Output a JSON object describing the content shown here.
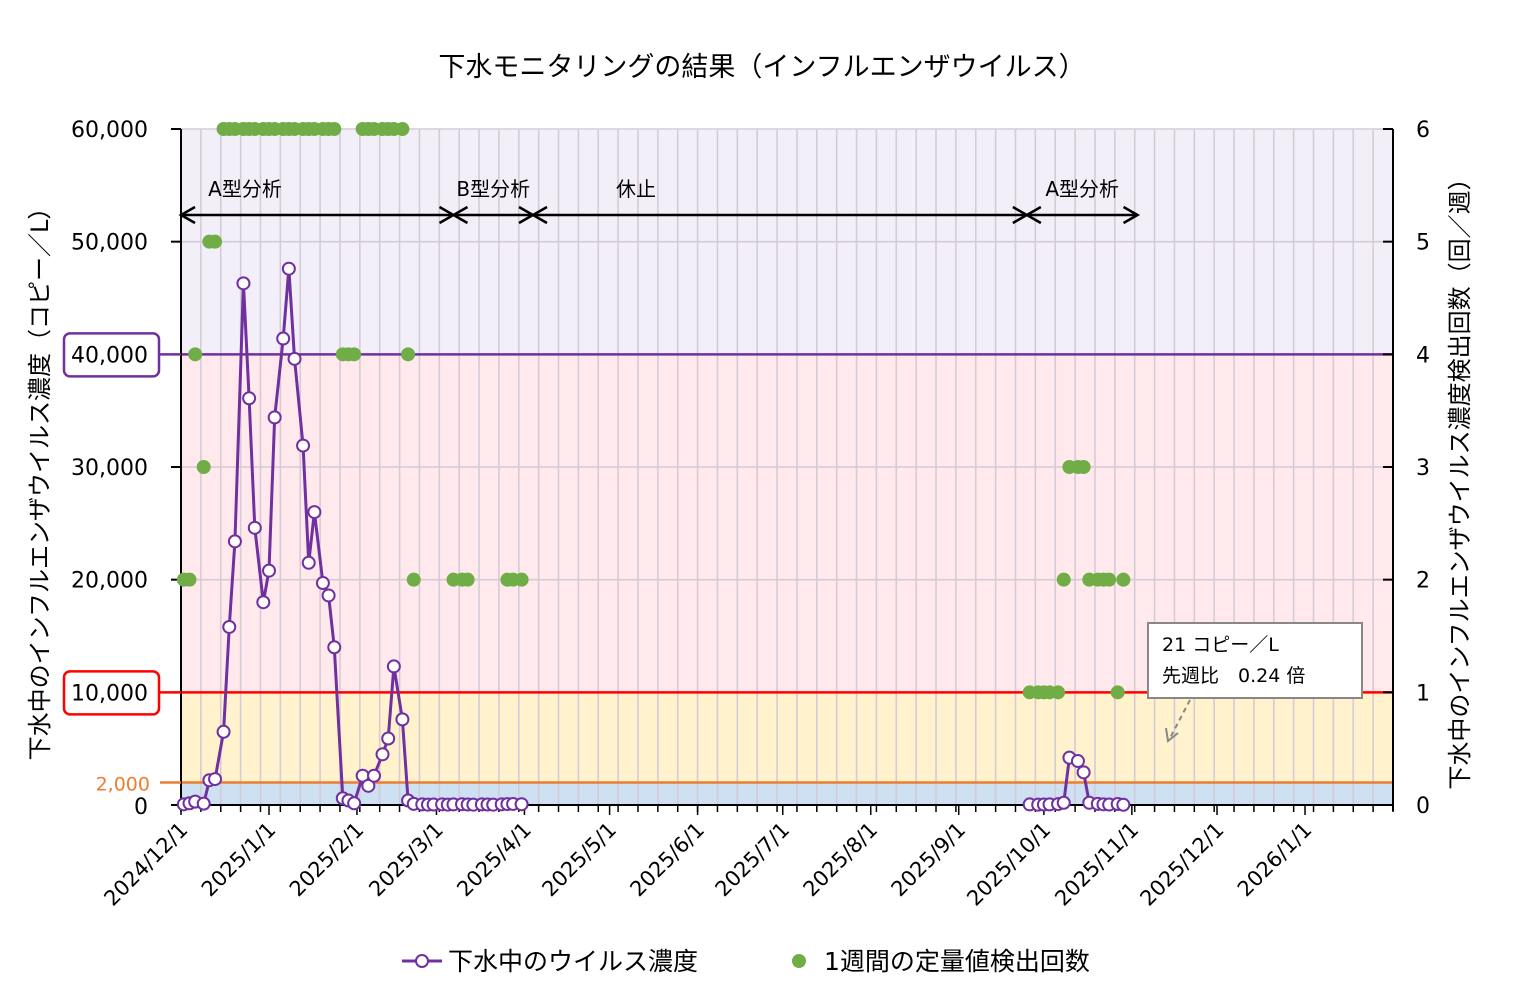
{
  "chart_data": {
    "type": "line",
    "title": "下水モニタリングの結果（インフルエンザウイルス）",
    "ylabel_left": "下水中のインフルエンザウイルス濃度（コピー／L）",
    "ylabel_right": "下水中のインフルエンザウイルス濃度検出回数（回／週）",
    "xlim": [
      "2024-12-01",
      "2026-02-01"
    ],
    "ylim_left": [
      0,
      60000
    ],
    "ylim_right": [
      0,
      6
    ],
    "grid": "on",
    "legend_placement": "bottom",
    "x_tick_labels": [
      {
        "date": "2024-12-01",
        "label": "2024/12/1"
      },
      {
        "date": "2025-01-01",
        "label": "2025/1/1"
      },
      {
        "date": "2025-02-01",
        "label": "2025/2/1"
      },
      {
        "date": "2025-03-01",
        "label": "2025/3/1"
      },
      {
        "date": "2025-04-01",
        "label": "2025/4/1"
      },
      {
        "date": "2025-05-01",
        "label": "2025/5/1"
      },
      {
        "date": "2025-06-01",
        "label": "2025/6/1"
      },
      {
        "date": "2025-07-01",
        "label": "2025/7/1"
      },
      {
        "date": "2025-08-01",
        "label": "2025/8/1"
      },
      {
        "date": "2025-09-01",
        "label": "2025/9/1"
      },
      {
        "date": "2025-10-01",
        "label": "2025/10/1"
      },
      {
        "date": "2025-11-01",
        "label": "2025/11/1"
      },
      {
        "date": "2025-12-01",
        "label": "2025/12/1"
      },
      {
        "date": "2026-01-01",
        "label": "2026/1/1"
      }
    ],
    "y_tick_labels_left": [
      {
        "value": 0,
        "label": "0",
        "style": "plain"
      },
      {
        "value": 2000,
        "label": "2,000",
        "style": "orange"
      },
      {
        "value": 10000,
        "label": "10,000",
        "style": "boxed-red"
      },
      {
        "value": 20000,
        "label": "20,000",
        "style": "plain"
      },
      {
        "value": 30000,
        "label": "30,000",
        "style": "plain"
      },
      {
        "value": 40000,
        "label": "40,000",
        "style": "boxed-purple"
      },
      {
        "value": 50000,
        "label": "50,000",
        "style": "plain"
      },
      {
        "value": 60000,
        "label": "60,000",
        "style": "plain"
      }
    ],
    "y_tick_labels_right": [
      {
        "value": 0,
        "label": "0"
      },
      {
        "value": 1,
        "label": "1"
      },
      {
        "value": 2,
        "label": "2"
      },
      {
        "value": 3,
        "label": "3"
      },
      {
        "value": 4,
        "label": "4"
      },
      {
        "value": 5,
        "label": "5"
      },
      {
        "value": 6,
        "label": "6"
      }
    ],
    "bands": [
      {
        "from": 0,
        "to": 2000,
        "color": "#cde1f2"
      },
      {
        "from": 2000,
        "to": 10000,
        "color": "#fff2cc"
      },
      {
        "from": 10000,
        "to": 40000,
        "color": "#ffe9ec"
      },
      {
        "from": 40000,
        "to": 60000,
        "color": "#f3eff9"
      }
    ],
    "thresholds": [
      {
        "value": 2000,
        "color": "#ed7d31"
      },
      {
        "value": 10000,
        "color": "#ff0000"
      },
      {
        "value": 40000,
        "color": "#7030a0"
      }
    ],
    "periods": [
      {
        "label": "A型分析",
        "start": "2024-12-01",
        "end": "2025-03-07"
      },
      {
        "label": "B型分析",
        "start": "2025-03-07",
        "end": "2025-04-04"
      },
      {
        "label": "休止",
        "start": "2025-04-04",
        "end": "2025-09-25"
      },
      {
        "label": "A型分析",
        "start": "2025-09-25",
        "end": "2025-11-03"
      }
    ],
    "callout": {
      "lines": [
        "21 コピー／L",
        "先週比　0.24 倍"
      ],
      "target_date": "2025-10-29"
    },
    "series": [
      {
        "name": "下水中のウイルス濃度",
        "axis": "left",
        "color": "#7030a0",
        "marker": "open-circle",
        "points": [
          [
            "2024-12-02",
            60
          ],
          [
            "2024-12-04",
            150
          ],
          [
            "2024-12-06",
            300
          ],
          [
            "2024-12-09",
            120
          ],
          [
            "2024-12-11",
            2200
          ],
          [
            "2024-12-13",
            2300
          ],
          [
            "2024-12-16",
            6500
          ],
          [
            "2024-12-18",
            15800
          ],
          [
            "2024-12-20",
            23400
          ],
          [
            "2024-12-23",
            46300
          ],
          [
            "2024-12-25",
            36100
          ],
          [
            "2024-12-27",
            24600
          ],
          [
            "2024-12-30",
            18000
          ],
          [
            "2025-01-01",
            20800
          ],
          [
            "2025-01-03",
            34400
          ],
          [
            "2025-01-06",
            41400
          ],
          [
            "2025-01-08",
            47600
          ],
          [
            "2025-01-10",
            39600
          ],
          [
            "2025-01-13",
            31900
          ],
          [
            "2025-01-15",
            21500
          ],
          [
            "2025-01-17",
            26000
          ],
          [
            "2025-01-20",
            19700
          ],
          [
            "2025-01-22",
            18600
          ],
          [
            "2025-01-24",
            14000
          ],
          [
            "2025-01-27",
            600
          ],
          [
            "2025-01-29",
            400
          ],
          [
            "2025-01-31",
            150
          ],
          [
            "2025-02-03",
            2600
          ],
          [
            "2025-02-05",
            1700
          ],
          [
            "2025-02-07",
            2600
          ],
          [
            "2025-02-10",
            4500
          ],
          [
            "2025-02-12",
            5900
          ],
          [
            "2025-02-14",
            12300
          ],
          [
            "2025-02-17",
            7600
          ],
          [
            "2025-02-19",
            400
          ],
          [
            "2025-02-21",
            100
          ],
          [
            "2025-02-24",
            50
          ],
          [
            "2025-02-26",
            30
          ],
          [
            "2025-02-28",
            40
          ],
          [
            "2025-03-03",
            60
          ],
          [
            "2025-03-05",
            30
          ],
          [
            "2025-03-07",
            50
          ],
          [
            "2025-03-10",
            70
          ],
          [
            "2025-03-12",
            40
          ],
          [
            "2025-03-14",
            30
          ],
          [
            "2025-03-17",
            50
          ],
          [
            "2025-03-19",
            40
          ],
          [
            "2025-03-21",
            30
          ],
          [
            "2025-03-24",
            60
          ],
          [
            "2025-03-26",
            80
          ],
          [
            "2025-03-28",
            90
          ],
          [
            "2025-03-31",
            70
          ],
          null,
          [
            "2025-09-26",
            50
          ],
          [
            "2025-09-29",
            30
          ],
          [
            "2025-10-01",
            40
          ],
          [
            "2025-10-03",
            50
          ],
          [
            "2025-10-06",
            80
          ],
          [
            "2025-10-08",
            200
          ],
          [
            "2025-10-10",
            4200
          ],
          [
            "2025-10-13",
            3900
          ],
          [
            "2025-10-15",
            2900
          ],
          [
            "2025-10-17",
            200
          ],
          [
            "2025-10-20",
            100
          ],
          [
            "2025-10-22",
            60
          ],
          [
            "2025-10-24",
            40
          ],
          [
            "2025-10-27",
            87
          ],
          [
            "2025-10-29",
            21
          ]
        ]
      },
      {
        "name": "1週間の定量値検出回数",
        "axis": "right",
        "color": "#70ad47",
        "marker": "filled-circle",
        "points": [
          [
            "2024-12-02",
            2
          ],
          [
            "2024-12-04",
            2
          ],
          [
            "2024-12-06",
            4
          ],
          [
            "2024-12-09",
            3
          ],
          [
            "2024-12-11",
            5
          ],
          [
            "2024-12-13",
            5
          ],
          [
            "2024-12-16",
            6
          ],
          [
            "2024-12-18",
            6
          ],
          [
            "2024-12-20",
            6
          ],
          [
            "2024-12-23",
            6
          ],
          [
            "2024-12-25",
            6
          ],
          [
            "2024-12-27",
            6
          ],
          [
            "2024-12-30",
            6
          ],
          [
            "2025-01-01",
            6
          ],
          [
            "2025-01-03",
            6
          ],
          [
            "2025-01-06",
            6
          ],
          [
            "2025-01-08",
            6
          ],
          [
            "2025-01-10",
            6
          ],
          [
            "2025-01-13",
            6
          ],
          [
            "2025-01-15",
            6
          ],
          [
            "2025-01-17",
            6
          ],
          [
            "2025-01-20",
            6
          ],
          [
            "2025-01-22",
            6
          ],
          [
            "2025-01-24",
            6
          ],
          [
            "2025-01-27",
            4
          ],
          [
            "2025-01-29",
            4
          ],
          [
            "2025-01-31",
            4
          ],
          [
            "2025-02-03",
            6
          ],
          [
            "2025-02-05",
            6
          ],
          [
            "2025-02-07",
            6
          ],
          [
            "2025-02-10",
            6
          ],
          [
            "2025-02-12",
            6
          ],
          [
            "2025-02-14",
            6
          ],
          [
            "2025-02-17",
            6
          ],
          [
            "2025-02-19",
            4
          ],
          [
            "2025-02-21",
            2
          ],
          [
            "2025-03-07",
            2
          ],
          [
            "2025-03-10",
            2
          ],
          [
            "2025-03-12",
            2
          ],
          [
            "2025-03-26",
            2
          ],
          [
            "2025-03-28",
            2
          ],
          [
            "2025-03-31",
            2
          ],
          [
            "2025-09-26",
            1
          ],
          [
            "2025-09-29",
            1
          ],
          [
            "2025-10-01",
            1
          ],
          [
            "2025-10-03",
            1
          ],
          [
            "2025-10-06",
            1
          ],
          [
            "2025-10-08",
            2
          ],
          [
            "2025-10-10",
            3
          ],
          [
            "2025-10-13",
            3
          ],
          [
            "2025-10-15",
            3
          ],
          [
            "2025-10-17",
            2
          ],
          [
            "2025-10-20",
            2
          ],
          [
            "2025-10-22",
            2
          ],
          [
            "2025-10-24",
            2
          ],
          [
            "2025-10-27",
            1
          ],
          [
            "2025-10-29",
            2
          ]
        ]
      }
    ]
  }
}
